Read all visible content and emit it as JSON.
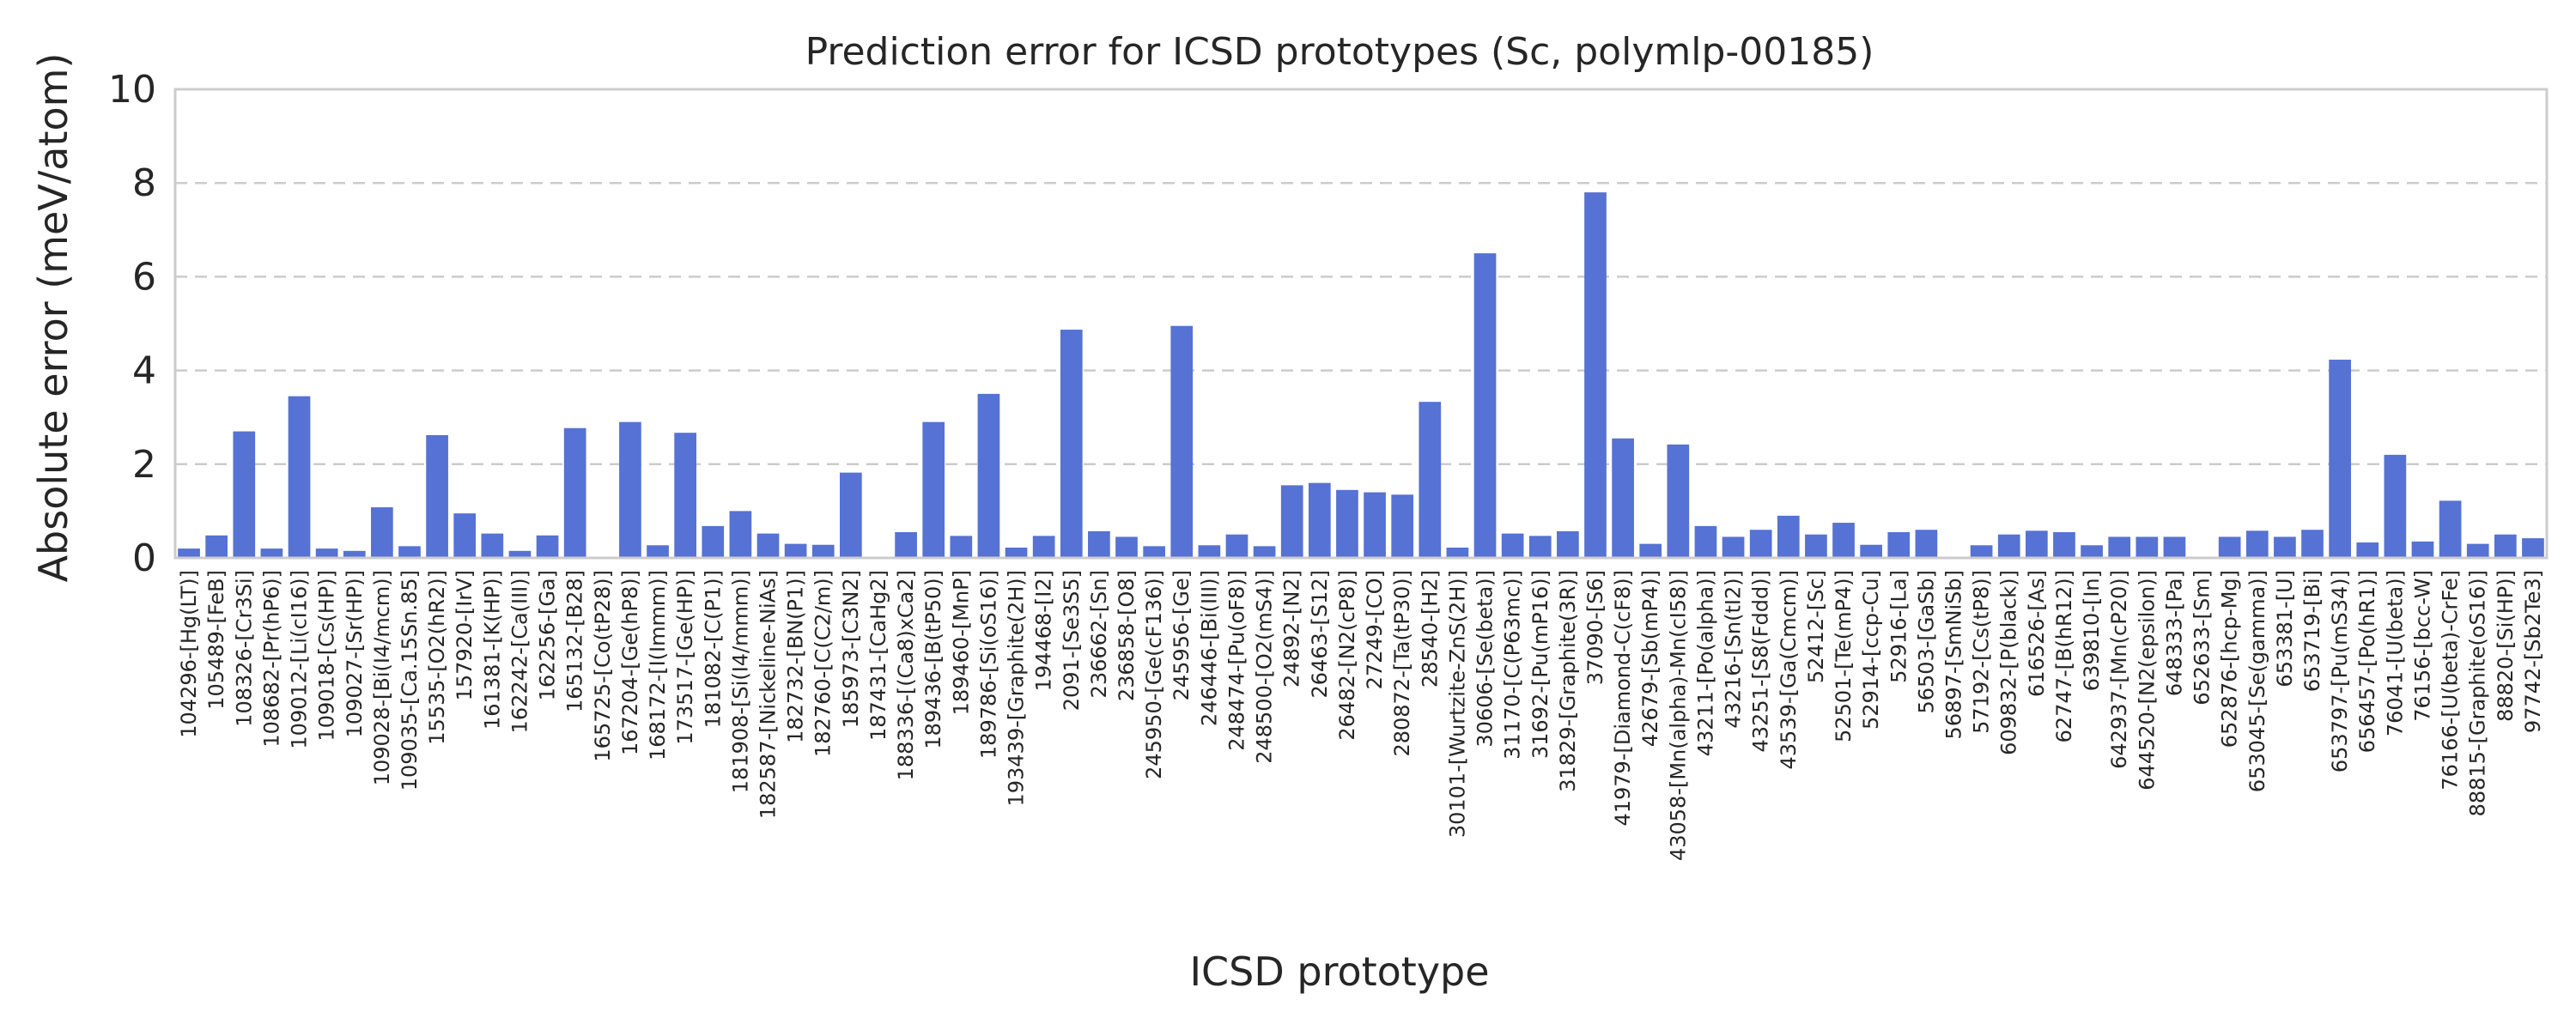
{
  "chart_data": {
    "type": "bar",
    "title": "Prediction error for ICSD prototypes (Sc, polymlp-00185)",
    "xlabel": "ICSD prototype",
    "ylabel": "Absolute error (meV/atom)",
    "ylim": [
      0,
      10
    ],
    "yticks": [
      0,
      2,
      4,
      6,
      8,
      10
    ],
    "grid": true,
    "bar_color": "#5572d4",
    "categories": [
      "104296-[Hg(LT)]",
      "105489-[FeB]",
      "108326-[Cr3Si]",
      "108682-[Pr(hP6)]",
      "109012-[Li(cI16)]",
      "109018-[Cs(HP)]",
      "109027-[Sr(HP)]",
      "109028-[Bi(I4/mcm)]",
      "109035-[Ca.15Sn.85]",
      "15535-[O2(hR2)]",
      "157920-[IrV]",
      "161381-[K(HP)]",
      "162242-[Ca(III)]",
      "162256-[Ga]",
      "165132-[B28]",
      "165725-[Co(tP28)]",
      "167204-[Ge(hP8)]",
      "168172-[I(Immm)]",
      "173517-[Ge(HP)]",
      "181082-[C(P1)]",
      "181908-[Si(I4/mmm)]",
      "182587-[Nickeline-NiAs]",
      "182732-[BN(P1)]",
      "182760-[C(C2/m)]",
      "185973-[C3N2]",
      "187431-[CaHg2]",
      "188336-[(Ca8)xCa2]",
      "189436-[B(tP50)]",
      "189460-[MnP]",
      "189786-[Si(oS16)]",
      "193439-[Graphite(2H)]",
      "194468-[I2]",
      "2091-[Se3S5]",
      "236662-[Sn]",
      "236858-[O8]",
      "245950-[Ge(cF136)]",
      "245956-[Ge]",
      "246446-[Bi(III)]",
      "248474-[Pu(oF8)]",
      "248500-[O2(mS4)]",
      "24892-[N2]",
      "26463-[S12]",
      "26482-[N2(cP8)]",
      "27249-[CO]",
      "280872-[Ta(tP30)]",
      "28540-[H2]",
      "30101-[Wurtzite-ZnS(2H)]",
      "30606-[Se(beta)]",
      "31170-[C(P63mc)]",
      "31692-[Pu(mP16)]",
      "31829-[Graphite(3R)]",
      "37090-[S6]",
      "41979-[Diamond-C(cF8)]",
      "42679-[Sb(mP4)]",
      "43058-[Mn(alpha)-Mn(cI58)]",
      "43211-[Po(alpha)]",
      "43216-[Sn(tI2)]",
      "43251-[S8(Fddd)]",
      "43539-[Ga(Cmcm)]",
      "52412-[Sc]",
      "52501-[Te(mP4)]",
      "52914-[ccp-Cu]",
      "52916-[La]",
      "56503-[GaSb]",
      "56897-[SmNiSb]",
      "57192-[Cs(tP8)]",
      "609832-[P(black)]",
      "616526-[As]",
      "62747-[B(hR12)]",
      "639810-[In]",
      "642937-[Mn(cP20)]",
      "644520-[N2(epsilon)]",
      "648333-[Pa]",
      "652633-[Sm]",
      "652876-[hcp-Mg]",
      "653045-[Se(gamma)]",
      "653381-[U]",
      "653719-[Bi]",
      "653797-[Pu(mS34)]",
      "656457-[Po(hR1)]",
      "76041-[U(beta)]",
      "76156-[bcc-W]",
      "76166-[U(beta)-CrFe]",
      "88815-[Graphite(oS16)]",
      "88820-[Si(HP)]",
      "97742-[Sb2Te3]"
    ],
    "values": [
      0.2,
      0.48,
      2.7,
      0.2,
      3.45,
      0.2,
      0.15,
      1.08,
      0.25,
      2.62,
      0.95,
      0.52,
      0.15,
      0.48,
      2.77,
      0.0,
      2.9,
      0.27,
      2.67,
      0.68,
      1.0,
      0.52,
      0.3,
      0.28,
      1.82,
      0.0,
      0.55,
      2.9,
      0.47,
      3.5,
      0.22,
      0.47,
      4.87,
      0.57,
      0.45,
      0.25,
      4.95,
      0.27,
      0.5,
      0.25,
      1.55,
      1.6,
      1.45,
      1.4,
      1.35,
      3.33,
      0.22,
      6.5,
      0.52,
      0.47,
      0.57,
      7.8,
      2.55,
      0.3,
      2.42,
      0.68,
      0.45,
      0.6,
      0.9,
      0.5,
      0.75,
      0.28,
      0.55,
      0.6,
      0.0,
      0.27,
      0.5,
      0.58,
      0.55,
      0.27,
      0.45,
      0.45,
      0.45,
      0.0,
      0.45,
      0.58,
      0.45,
      0.6,
      4.23,
      0.33,
      2.2,
      0.35,
      1.22,
      0.3,
      0.5,
      0.42
    ]
  }
}
